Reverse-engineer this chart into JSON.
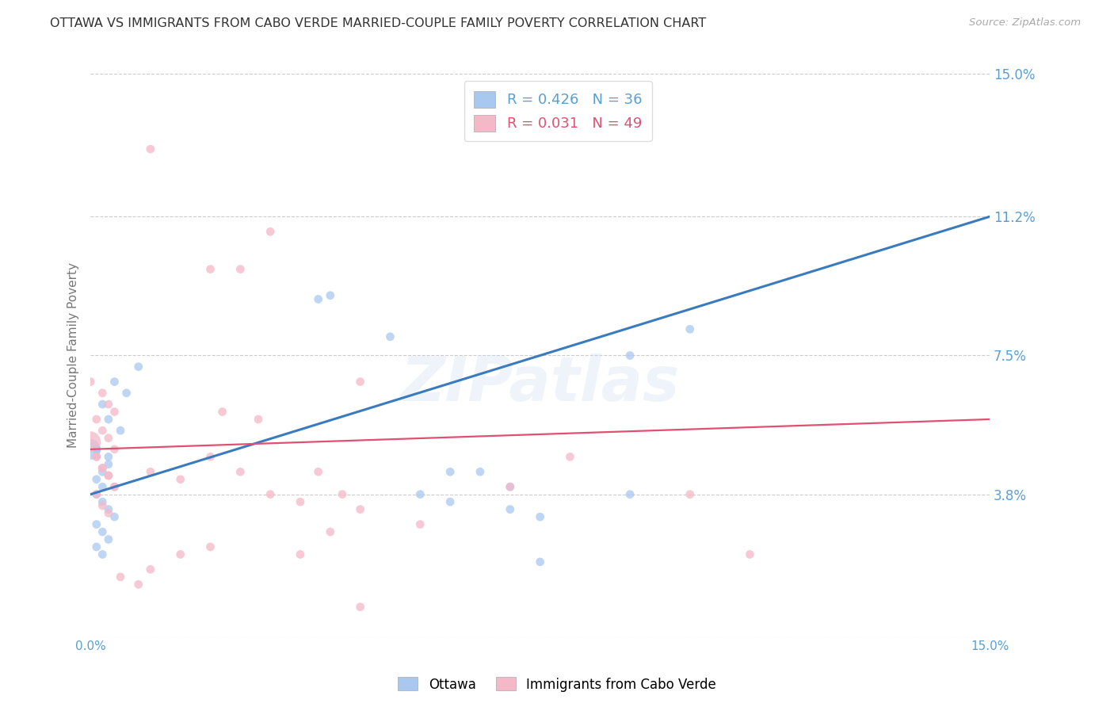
{
  "title": "OTTAWA VS IMMIGRANTS FROM CABO VERDE MARRIED-COUPLE FAMILY POVERTY CORRELATION CHART",
  "source": "Source: ZipAtlas.com",
  "ylabel": "Married-Couple Family Poverty",
  "xlim": [
    0.0,
    0.15
  ],
  "ylim": [
    0.0,
    0.15
  ],
  "ytick_labels_right": [
    "15.0%",
    "11.2%",
    "7.5%",
    "3.8%"
  ],
  "ytick_vals_right": [
    0.15,
    0.112,
    0.075,
    0.038
  ],
  "gridline_vals": [
    0.15,
    0.112,
    0.075,
    0.038,
    0.0
  ],
  "legend_blue_r": "R = 0.426",
  "legend_blue_n": "N = 36",
  "legend_pink_r": "R = 0.031",
  "legend_pink_n": "N = 49",
  "legend_label_blue": "Ottawa",
  "legend_label_pink": "Immigrants from Cabo Verde",
  "blue_color": "#a8c8f0",
  "pink_color": "#f5b8c8",
  "line_blue_color": "#3a7bbf",
  "line_pink_color": "#e05070",
  "watermark": "ZIPatlas",
  "blue_points": [
    [
      0.002,
      0.062
    ],
    [
      0.004,
      0.068
    ],
    [
      0.006,
      0.065
    ],
    [
      0.008,
      0.072
    ],
    [
      0.003,
      0.058
    ],
    [
      0.005,
      0.055
    ],
    [
      0.001,
      0.05
    ],
    [
      0.003,
      0.048
    ],
    [
      0.001,
      0.042
    ],
    [
      0.002,
      0.04
    ],
    [
      0.003,
      0.046
    ],
    [
      0.002,
      0.044
    ],
    [
      0.001,
      0.038
    ],
    [
      0.002,
      0.036
    ],
    [
      0.003,
      0.034
    ],
    [
      0.004,
      0.032
    ],
    [
      0.001,
      0.03
    ],
    [
      0.002,
      0.028
    ],
    [
      0.003,
      0.026
    ],
    [
      0.001,
      0.024
    ],
    [
      0.002,
      0.022
    ],
    [
      0.0,
      0.05
    ],
    [
      0.038,
      0.09
    ],
    [
      0.04,
      0.091
    ],
    [
      0.05,
      0.08
    ],
    [
      0.06,
      0.044
    ],
    [
      0.065,
      0.044
    ],
    [
      0.07,
      0.04
    ],
    [
      0.055,
      0.038
    ],
    [
      0.06,
      0.036
    ],
    [
      0.07,
      0.034
    ],
    [
      0.075,
      0.032
    ],
    [
      0.09,
      0.075
    ],
    [
      0.1,
      0.082
    ],
    [
      0.09,
      0.038
    ],
    [
      0.075,
      0.02
    ]
  ],
  "pink_points": [
    [
      0.01,
      0.13
    ],
    [
      0.02,
      0.098
    ],
    [
      0.025,
      0.098
    ],
    [
      0.03,
      0.108
    ],
    [
      0.0,
      0.068
    ],
    [
      0.002,
      0.065
    ],
    [
      0.003,
      0.062
    ],
    [
      0.004,
      0.06
    ],
    [
      0.001,
      0.058
    ],
    [
      0.002,
      0.055
    ],
    [
      0.003,
      0.053
    ],
    [
      0.004,
      0.05
    ],
    [
      0.001,
      0.048
    ],
    [
      0.002,
      0.045
    ],
    [
      0.003,
      0.043
    ],
    [
      0.004,
      0.04
    ],
    [
      0.001,
      0.048
    ],
    [
      0.002,
      0.045
    ],
    [
      0.003,
      0.043
    ],
    [
      0.004,
      0.04
    ],
    [
      0.001,
      0.038
    ],
    [
      0.002,
      0.035
    ],
    [
      0.003,
      0.033
    ],
    [
      0.0,
      0.052
    ],
    [
      0.01,
      0.044
    ],
    [
      0.015,
      0.042
    ],
    [
      0.02,
      0.048
    ],
    [
      0.025,
      0.044
    ],
    [
      0.03,
      0.038
    ],
    [
      0.035,
      0.036
    ],
    [
      0.038,
      0.044
    ],
    [
      0.042,
      0.038
    ],
    [
      0.045,
      0.034
    ],
    [
      0.055,
      0.03
    ],
    [
      0.04,
      0.028
    ],
    [
      0.02,
      0.024
    ],
    [
      0.015,
      0.022
    ],
    [
      0.01,
      0.018
    ],
    [
      0.005,
      0.016
    ],
    [
      0.008,
      0.014
    ],
    [
      0.035,
      0.022
    ],
    [
      0.08,
      0.048
    ],
    [
      0.1,
      0.038
    ],
    [
      0.11,
      0.022
    ],
    [
      0.07,
      0.04
    ],
    [
      0.045,
      0.068
    ],
    [
      0.028,
      0.058
    ],
    [
      0.022,
      0.06
    ],
    [
      0.045,
      0.008
    ]
  ],
  "blue_sizes_all": 60,
  "pink_sizes_all": 60,
  "blue_big_idx": 21,
  "blue_big_size": 350,
  "pink_big_idx": 23,
  "pink_big_size": 350,
  "blue_line_x": [
    0.0,
    0.15
  ],
  "blue_line_y": [
    0.038,
    0.112
  ],
  "pink_line_x": [
    0.0,
    0.15
  ],
  "pink_line_y": [
    0.05,
    0.058
  ],
  "background_color": "#ffffff",
  "grid_color": "#cccccc",
  "title_color": "#333333",
  "axis_label_color": "#777777",
  "right_tick_color": "#5a9fd4",
  "xtick_color": "#5a9fd4"
}
